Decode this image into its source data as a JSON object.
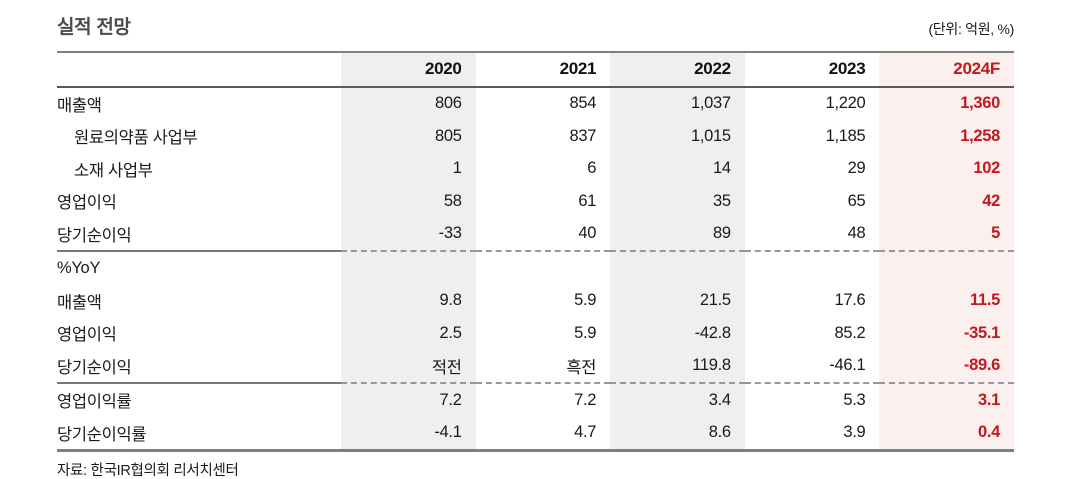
{
  "title": "실적 전망",
  "unit_label": "(단위: 억원, %)",
  "source": "자료: 한국IR협의회 리서치센터",
  "colors": {
    "accent_red": "#c2181f",
    "shaded_column_bg": "#efefef",
    "forecast_column_bg": "#fcf0ee",
    "title_gray": "#4a4a4a",
    "border_gray": "#7f7f7f"
  },
  "table": {
    "columns": [
      "",
      "2020",
      "2021",
      "2022",
      "2023",
      "2024F"
    ],
    "sections": [
      {
        "rows": [
          {
            "label": "매출액",
            "indent": false,
            "values": [
              "806",
              "854",
              "1,037",
              "1,220",
              "1,360"
            ]
          },
          {
            "label": "원료의약품 사업부",
            "indent": true,
            "values": [
              "805",
              "837",
              "1,015",
              "1,185",
              "1,258"
            ]
          },
          {
            "label": "소재 사업부",
            "indent": true,
            "values": [
              "1",
              "6",
              "14",
              "29",
              "102"
            ]
          },
          {
            "label": "영업이익",
            "indent": false,
            "values": [
              "58",
              "61",
              "35",
              "65",
              "42"
            ]
          },
          {
            "label": "당기순이익",
            "indent": false,
            "values": [
              "-33",
              "40",
              "89",
              "48",
              "5"
            ]
          }
        ]
      },
      {
        "rows": [
          {
            "label": "%YoY",
            "indent": false,
            "values": [
              "",
              "",
              "",
              "",
              ""
            ]
          },
          {
            "label": "매출액",
            "indent": false,
            "values": [
              "9.8",
              "5.9",
              "21.5",
              "17.6",
              "11.5"
            ]
          },
          {
            "label": "영업이익",
            "indent": false,
            "values": [
              "2.5",
              "5.9",
              "-42.8",
              "85.2",
              "-35.1"
            ]
          },
          {
            "label": "당기순이익",
            "indent": false,
            "values": [
              "적전",
              "흑전",
              "119.8",
              "-46.1",
              "-89.6"
            ]
          }
        ]
      },
      {
        "rows": [
          {
            "label": "영업이익률",
            "indent": false,
            "values": [
              "7.2",
              "7.2",
              "3.4",
              "5.3",
              "3.1"
            ]
          },
          {
            "label": "당기순이익률",
            "indent": false,
            "values": [
              "-4.1",
              "4.7",
              "8.6",
              "3.9",
              "0.4"
            ]
          }
        ]
      }
    ]
  }
}
